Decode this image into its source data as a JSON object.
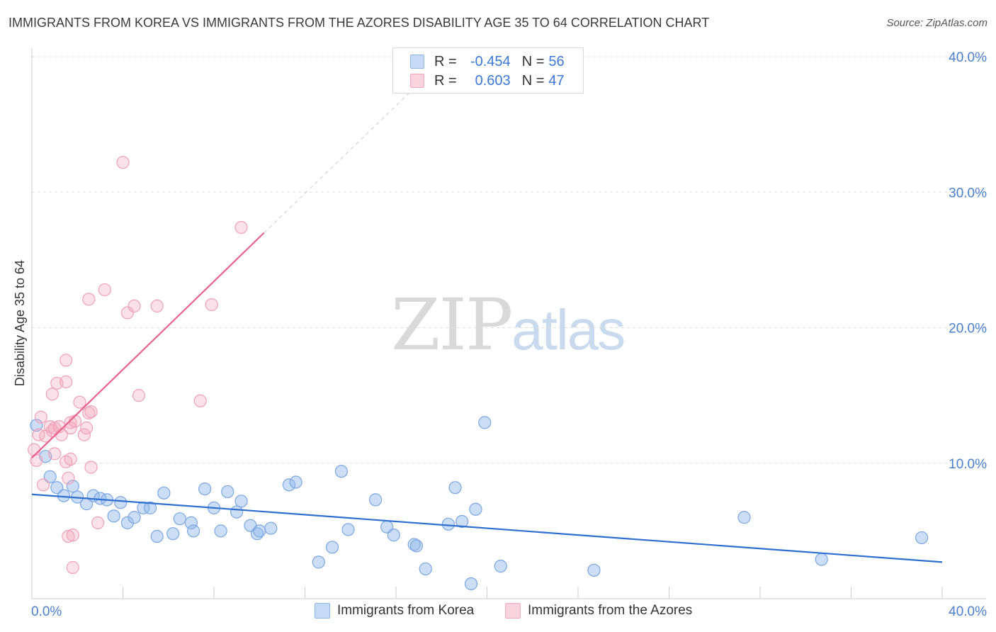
{
  "title": "IMMIGRANTS FROM KOREA VS IMMIGRANTS FROM THE AZORES DISABILITY AGE 35 TO 64 CORRELATION CHART",
  "source": "Source: ZipAtlas.com",
  "watermark": {
    "zip": "ZIP",
    "atlas": "atlas"
  },
  "legend": {
    "korea": {
      "r_label": "R =",
      "r_value": "-0.454",
      "n_label": "N =",
      "n_value": "56",
      "color": "#a9c8ef"
    },
    "azores": {
      "r_label": "R =",
      "r_value": "0.603",
      "n_label": "N =",
      "n_value": "47",
      "color": "#f6b8cb"
    }
  },
  "chart_data": {
    "type": "scatter",
    "title": "IMMIGRANTS FROM KOREA VS IMMIGRANTS FROM THE AZORES DISABILITY AGE 35 TO 64 CORRELATION CHART",
    "xlabel": "",
    "ylabel": "Disability Age 35 to 64",
    "xlim": [
      0,
      40
    ],
    "ylim": [
      0,
      40
    ],
    "x_tick_labels": [
      "0.0%",
      "40.0%"
    ],
    "y_ticks": [
      10,
      20,
      30,
      40
    ],
    "y_tick_labels": [
      "10.0%",
      "20.0%",
      "30.0%",
      "40.0%"
    ],
    "grid": true,
    "legend_position": "bottom-center",
    "series": [
      {
        "name": "Immigrants from Korea",
        "color": "#8fb5e8",
        "line_color": "#2f6fd0",
        "trend": {
          "x": [
            0,
            40
          ],
          "y": [
            7.7,
            2.7
          ]
        },
        "points": [
          [
            0.2,
            12.8
          ],
          [
            0.6,
            10.5
          ],
          [
            0.8,
            9.0
          ],
          [
            1.1,
            8.2
          ],
          [
            1.4,
            7.6
          ],
          [
            1.8,
            8.3
          ],
          [
            2.0,
            7.5
          ],
          [
            2.4,
            7.0
          ],
          [
            2.7,
            7.6
          ],
          [
            3.0,
            7.4
          ],
          [
            3.3,
            7.3
          ],
          [
            3.6,
            6.1
          ],
          [
            3.9,
            7.1
          ],
          [
            4.2,
            5.6
          ],
          [
            4.5,
            6.0
          ],
          [
            4.9,
            6.7
          ],
          [
            5.2,
            6.7
          ],
          [
            5.5,
            4.6
          ],
          [
            5.8,
            7.8
          ],
          [
            6.2,
            4.8
          ],
          [
            6.5,
            5.9
          ],
          [
            7.0,
            5.6
          ],
          [
            7.1,
            5.0
          ],
          [
            7.6,
            8.1
          ],
          [
            8.0,
            6.7
          ],
          [
            8.3,
            5.0
          ],
          [
            8.6,
            7.9
          ],
          [
            9.0,
            6.4
          ],
          [
            9.2,
            7.2
          ],
          [
            9.6,
            5.4
          ],
          [
            9.9,
            4.8
          ],
          [
            10.0,
            5.0
          ],
          [
            10.5,
            5.2
          ],
          [
            11.3,
            8.4
          ],
          [
            11.6,
            8.6
          ],
          [
            12.6,
            2.7
          ],
          [
            13.2,
            3.8
          ],
          [
            13.6,
            9.4
          ],
          [
            13.9,
            5.1
          ],
          [
            15.1,
            7.3
          ],
          [
            15.6,
            5.3
          ],
          [
            15.9,
            4.7
          ],
          [
            16.8,
            4.0
          ],
          [
            16.9,
            3.9
          ],
          [
            17.3,
            2.2
          ],
          [
            18.3,
            5.5
          ],
          [
            18.6,
            8.2
          ],
          [
            18.9,
            5.7
          ],
          [
            19.3,
            1.1
          ],
          [
            19.5,
            6.6
          ],
          [
            19.9,
            13.0
          ],
          [
            20.6,
            2.4
          ],
          [
            24.7,
            2.1
          ],
          [
            31.3,
            6.0
          ],
          [
            34.7,
            2.9
          ],
          [
            39.1,
            4.5
          ]
        ]
      },
      {
        "name": "Immigrants from the Azores",
        "color": "#f3a8bf",
        "line_color": "#e8628c",
        "trend": {
          "x": [
            0,
            10.2
          ],
          "y": [
            10.4,
            27.0
          ]
        },
        "trend_extension": {
          "x": [
            10.2,
            17
          ],
          "y": [
            27.0,
            38.0
          ]
        },
        "points": [
          [
            0.1,
            11.0
          ],
          [
            0.2,
            10.2
          ],
          [
            0.3,
            12.1
          ],
          [
            0.4,
            13.4
          ],
          [
            0.5,
            8.4
          ],
          [
            0.6,
            12.0
          ],
          [
            0.8,
            12.7
          ],
          [
            0.9,
            15.1
          ],
          [
            0.9,
            12.4
          ],
          [
            1.0,
            12.6
          ],
          [
            1.0,
            10.7
          ],
          [
            1.1,
            15.9
          ],
          [
            1.2,
            12.7
          ],
          [
            1.3,
            12.1
          ],
          [
            1.5,
            16.0
          ],
          [
            1.5,
            17.6
          ],
          [
            1.5,
            10.1
          ],
          [
            1.6,
            8.9
          ],
          [
            1.6,
            4.6
          ],
          [
            1.7,
            13.0
          ],
          [
            1.7,
            10.3
          ],
          [
            1.7,
            12.6
          ],
          [
            1.8,
            2.3
          ],
          [
            1.8,
            4.7
          ],
          [
            1.9,
            13.1
          ],
          [
            2.1,
            14.5
          ],
          [
            2.3,
            12.1
          ],
          [
            2.4,
            12.6
          ],
          [
            2.5,
            13.7
          ],
          [
            2.6,
            9.7
          ],
          [
            2.5,
            22.1
          ],
          [
            2.6,
            13.8
          ],
          [
            2.9,
            5.6
          ],
          [
            3.2,
            22.8
          ],
          [
            4.0,
            32.2
          ],
          [
            4.2,
            21.1
          ],
          [
            4.5,
            21.6
          ],
          [
            4.7,
            15.0
          ],
          [
            5.5,
            21.6
          ],
          [
            7.4,
            14.6
          ],
          [
            7.9,
            21.7
          ],
          [
            9.2,
            27.4
          ]
        ]
      }
    ]
  },
  "bottom_legend": {
    "korea": "Immigrants from Korea",
    "azores": "Immigrants from the Azores"
  }
}
